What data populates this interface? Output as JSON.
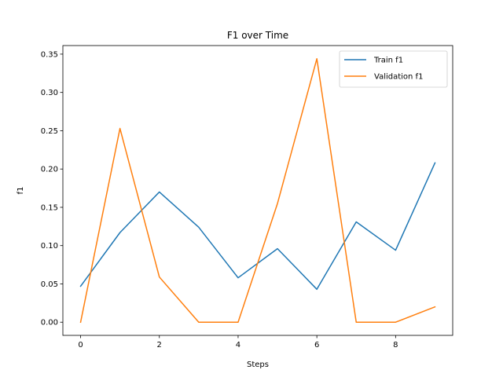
{
  "chart_data": {
    "type": "line",
    "title": "F1 over Time",
    "xlabel": "Steps",
    "ylabel": "f1",
    "x": [
      0,
      1,
      2,
      3,
      4,
      5,
      6,
      7,
      8,
      9
    ],
    "xlim": [
      -0.45,
      9.45
    ],
    "ylim": [
      -0.0172,
      0.3612
    ],
    "xticks": [
      0,
      2,
      4,
      6,
      8
    ],
    "xtick_labels": [
      "0",
      "2",
      "4",
      "6",
      "8"
    ],
    "yticks": [
      0.0,
      0.05,
      0.1,
      0.15,
      0.2,
      0.25,
      0.3,
      0.35
    ],
    "ytick_labels": [
      "0.00",
      "0.05",
      "0.10",
      "0.15",
      "0.20",
      "0.25",
      "0.30",
      "0.35"
    ],
    "grid": false,
    "legend_position": "top-right",
    "series": [
      {
        "name": "Train f1",
        "color": "#1f77b4",
        "values": [
          0.047,
          0.117,
          0.17,
          0.124,
          0.058,
          0.096,
          0.043,
          0.131,
          0.094,
          0.208
        ]
      },
      {
        "name": "Validation f1",
        "color": "#ff7f0e",
        "values": [
          0.0,
          0.253,
          0.059,
          0.0,
          0.0,
          0.155,
          0.344,
          0.0,
          0.0,
          0.02
        ]
      }
    ]
  }
}
